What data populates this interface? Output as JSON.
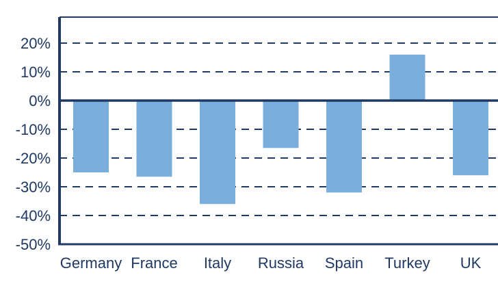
{
  "chart_data": {
    "type": "bar",
    "title": "",
    "xlabel": "",
    "ylabel": "",
    "categories": [
      "Germany",
      "France",
      "Italy",
      "Russia",
      "Spain",
      "Turkey",
      "UK"
    ],
    "values": [
      -25,
      -26.5,
      -36,
      -16.5,
      -32,
      16,
      -26
    ],
    "ylim": [
      -50,
      30
    ],
    "yticks": [
      20,
      10,
      0,
      -10,
      -20,
      -30,
      -40,
      -50
    ],
    "ytick_labels": [
      "20%",
      "10%",
      "0%",
      "-10%",
      "-20%",
      "-30%",
      "-40%",
      "-50%"
    ],
    "grid": "dashed",
    "legend": "none",
    "colors": {
      "bar": "#7aaedb",
      "axis": "#1f3864",
      "grid": "#1f3864",
      "text": "#1f3864"
    }
  }
}
